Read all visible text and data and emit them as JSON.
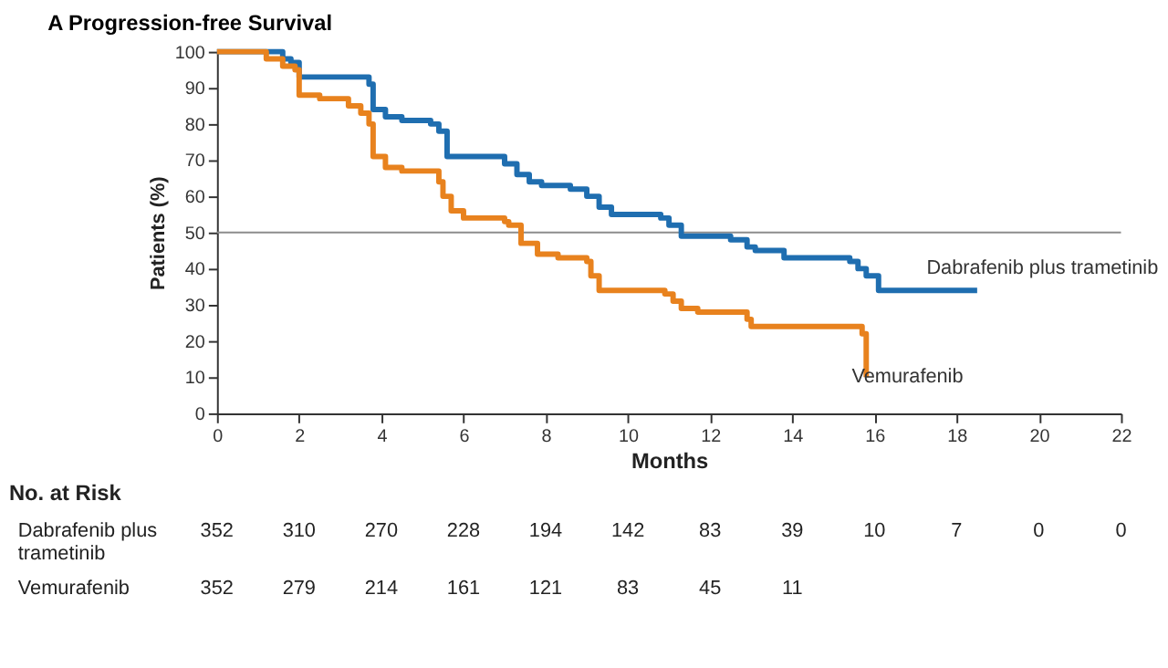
{
  "chart_data": [
    {
      "type": "step",
      "title": "A  Progression-free Survival",
      "xlabel": "Months",
      "ylabel": "Patients (%)",
      "xlim": [
        0,
        22
      ],
      "xticks": [
        0,
        2,
        4,
        6,
        8,
        10,
        12,
        14,
        16,
        18,
        20,
        22
      ],
      "ylim": [
        0,
        100
      ],
      "yticks": [
        0,
        10,
        20,
        30,
        40,
        50,
        60,
        70,
        80,
        90,
        100
      ],
      "grid": false,
      "legend": false,
      "line_style": "solid",
      "ref_lines": [
        {
          "axis": "y",
          "value": 50,
          "color": "#8c8c8c"
        }
      ],
      "series": [
        {
          "name": "Dabrafenib plus trametinib",
          "color": "#1f6eb0",
          "x": [
            0,
            1.3,
            1.6,
            1.8,
            2.0,
            3.5,
            3.7,
            3.8,
            4.1,
            4.5,
            5.2,
            5.4,
            5.6,
            6.5,
            7.0,
            7.3,
            7.6,
            7.9,
            8.6,
            9.0,
            9.3,
            9.6,
            10.8,
            11.0,
            11.3,
            12.5,
            12.9,
            13.1,
            13.8,
            15.4,
            15.6,
            15.8,
            16.1,
            18.5
          ],
          "values": [
            100,
            100,
            98,
            97,
            93,
            93,
            91,
            84,
            82,
            81,
            80,
            78,
            71,
            71,
            69,
            66,
            64,
            63,
            62,
            60,
            57,
            55,
            54,
            52,
            49,
            48,
            46,
            45,
            43,
            42,
            40,
            38,
            34,
            34
          ]
        },
        {
          "name": "Vemurafenib",
          "color": "#e8821e",
          "x": [
            0,
            0.8,
            1.2,
            1.6,
            1.9,
            2.0,
            2.5,
            3.2,
            3.5,
            3.7,
            3.8,
            4.1,
            4.5,
            5.1,
            5.4,
            5.5,
            5.7,
            6.0,
            7.0,
            7.1,
            7.4,
            7.8,
            8.3,
            9.0,
            9.1,
            9.3,
            10.9,
            11.1,
            11.3,
            11.7,
            12.7,
            12.9,
            13.0,
            15.5,
            15.7,
            15.8
          ],
          "values": [
            100,
            100,
            98,
            96,
            95,
            88,
            87,
            85,
            83,
            80,
            71,
            68,
            67,
            67,
            64,
            60,
            56,
            54,
            53,
            52,
            47,
            44,
            43,
            42,
            38,
            34,
            33,
            31,
            29,
            28,
            28,
            26,
            24,
            24,
            22,
            10
          ]
        }
      ]
    },
    {
      "type": "other",
      "title": "No. at Risk"
    },
    {
      "type": "other",
      "title": "Dabrafenib plus trametinib",
      "annotations": [
        "352",
        "310",
        "270",
        "228",
        "194",
        "142",
        "83",
        "39",
        "10",
        "7",
        "0",
        "0"
      ]
    },
    {
      "type": "other",
      "title": "Vemurafenib",
      "annotations": [
        "352",
        "279",
        "214",
        "161",
        "121",
        "83",
        "45",
        "11"
      ]
    }
  ]
}
